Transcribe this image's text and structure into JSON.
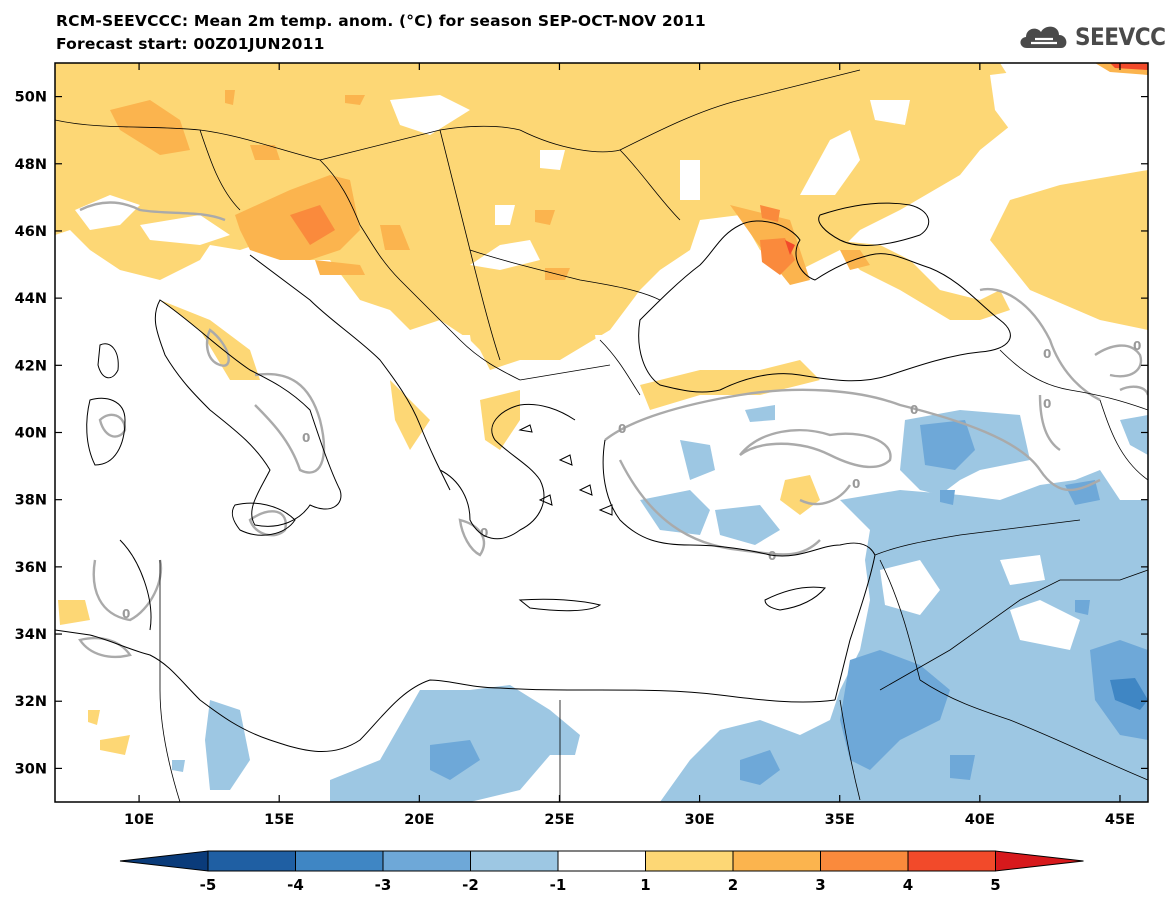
{
  "title": "RCM-SEEVCCC: Mean 2m temp. anom. (°C) for season SEP-OCT-NOV 2011",
  "subtitle": "Forecast start: 00Z01JUN2011",
  "logo": {
    "icon": "cloud-icon",
    "text": "SEEVCCC"
  },
  "map": {
    "projection": "lat-lon",
    "lon_range": [
      7.0,
      46.0
    ],
    "lat_range": [
      29.0,
      51.0
    ],
    "background_color": "#ffffff",
    "coastline_color": "#000000",
    "contour_zero_label": "0",
    "contour_zero_color": "#aaaaaa"
  },
  "axes": {
    "y_ticks": [
      {
        "value": 50,
        "label": "50N"
      },
      {
        "value": 48,
        "label": "48N"
      },
      {
        "value": 46,
        "label": "46N"
      },
      {
        "value": 44,
        "label": "44N"
      },
      {
        "value": 42,
        "label": "42N"
      },
      {
        "value": 40,
        "label": "40N"
      },
      {
        "value": 38,
        "label": "38N"
      },
      {
        "value": 36,
        "label": "36N"
      },
      {
        "value": 34,
        "label": "34N"
      },
      {
        "value": 32,
        "label": "32N"
      },
      {
        "value": 30,
        "label": "30N"
      }
    ],
    "x_ticks": [
      {
        "value": 10,
        "label": "10E"
      },
      {
        "value": 15,
        "label": "15E"
      },
      {
        "value": 20,
        "label": "20E"
      },
      {
        "value": 25,
        "label": "25E"
      },
      {
        "value": 30,
        "label": "30E"
      },
      {
        "value": 35,
        "label": "35E"
      },
      {
        "value": 40,
        "label": "40E"
      },
      {
        "value": 45,
        "label": "45E"
      }
    ]
  },
  "colorbar": {
    "boundaries": [
      "-5",
      "-4",
      "-3",
      "-2",
      "-1",
      "1",
      "2",
      "3",
      "4",
      "5"
    ],
    "under_color": "#0a3b7a",
    "over_color": "#d7191c",
    "colors": [
      "#1f5fa3",
      "#3f86c4",
      "#6ea8d8",
      "#9dc7e3",
      "#ffffff",
      "#fdd775",
      "#fbb44e",
      "#fa8a3c",
      "#f24a2a"
    ]
  },
  "anomaly_regions": [
    {
      "level": "warm-1",
      "color": "#fdd775",
      "desc": "Central and Eastern Europe, Balkans, Ukraine, Caucasus"
    },
    {
      "level": "warm-2",
      "color": "#fbb44e",
      "desc": "Alps, Pannonian basin, Crimea"
    },
    {
      "level": "warm-3",
      "color": "#fa8a3c",
      "desc": "Crimea coast"
    },
    {
      "level": "cold-1",
      "color": "#9dc7e3",
      "desc": "Eastern Anatolia, Levant, Egypt, Libya coast"
    },
    {
      "level": "cold-2",
      "color": "#6ea8d8",
      "desc": "Middle East interior"
    }
  ]
}
